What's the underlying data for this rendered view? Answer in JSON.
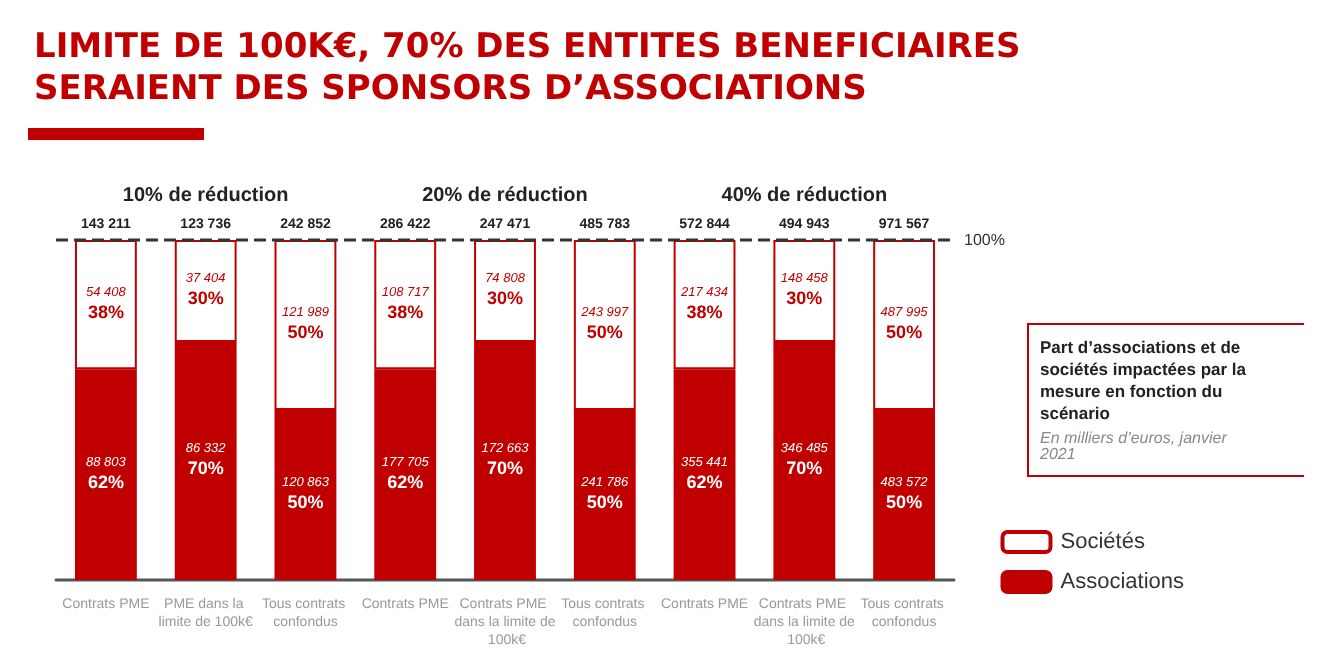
{
  "chart_data": {
    "type": "bar",
    "title": "LIMITE DE 100K€, 70% DES ENTITES BENEFICIAIRES SERAIENT DES SPONSORS D’ASSOCIATIONS",
    "categories": [
      "Contrats PME",
      "PME dans la limite de 100k€",
      "Tous contrats confondus",
      "Contrats PME",
      "Contrats PME dans la limite de 100k€",
      "Tous contrats confondus",
      "Contrats PME",
      "Contrats PME dans la limite de 100k€",
      "Tous contrats confondus"
    ],
    "series": [
      {
        "name": "Associations",
        "color": "#c00000",
        "values": [
          62,
          70,
          50,
          62,
          70,
          50,
          62,
          70,
          50
        ],
        "value_labels": [
          "88 803\n62%",
          "86 332\n70%",
          "120 863\n50%",
          "177 705\n62%",
          "172 663\n70%",
          "241 786\n50%",
          "355 441\n62%",
          "346 485\n70%",
          "483 572\n50%"
        ]
      },
      {
        "name": "Sociétés",
        "color": "#ffffff",
        "values": [
          38,
          30,
          50,
          38,
          30,
          50,
          38,
          30,
          50
        ],
        "value_labels": [
          "54 408\n38%",
          "37 404\n30%",
          "121 989\n50%",
          "108 717\n38%",
          "74 808\n30%",
          "243 997\n50%",
          "217 434\n38%",
          "148 458\n30%",
          "487 995\n50%"
        ]
      }
    ],
    "stacked": true,
    "tick_labels": "x",
    "legend": "right",
    "ref_lines": [
      {
        "axis": "y",
        "value": 100,
        "label": "100%",
        "line_style": "dashed",
        "color": "#333333"
      }
    ],
    "annotations": [
      "143 211",
      "123 736",
      "242 852",
      "286 422",
      "247 471",
      "485 783",
      "572 844",
      "494 943",
      "971 567",
      "10% de réduction",
      "20% de réduction",
      "40% de réduction",
      "Part d’associations et de sociétés impactées par la mesure en fonction du scénario",
      "En milliers d’euros, janvier 2021"
    ]
  }
}
